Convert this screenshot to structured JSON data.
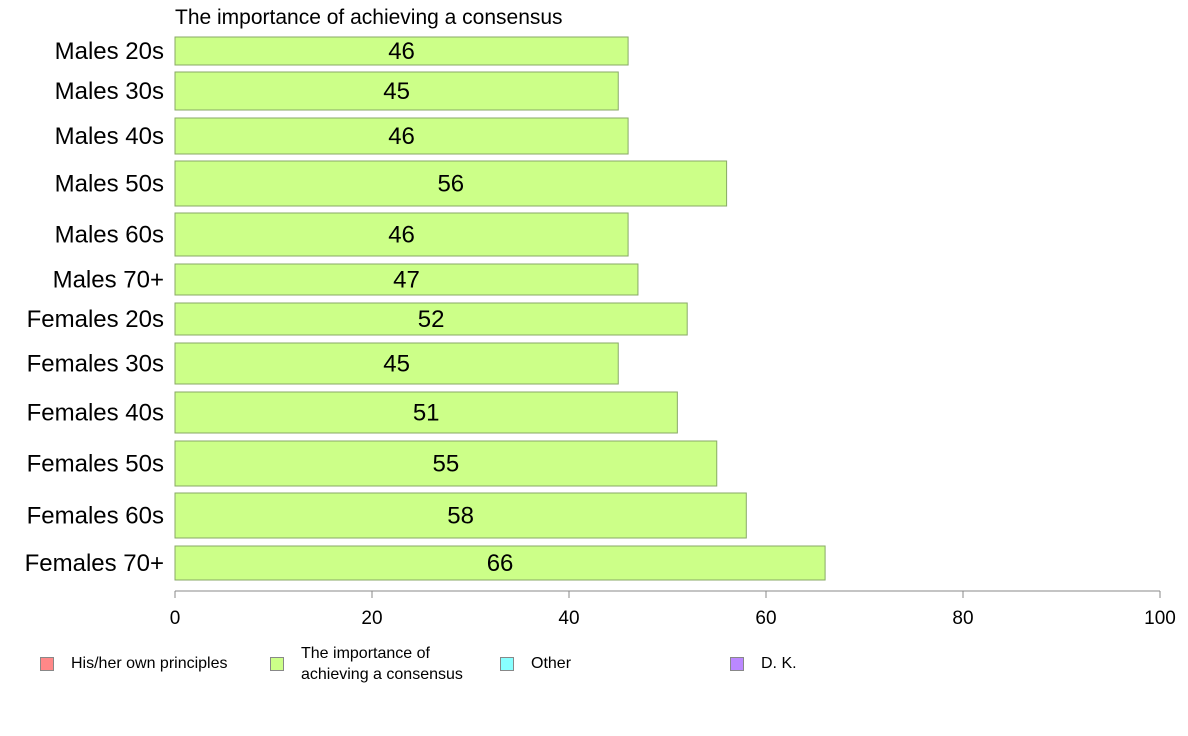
{
  "chart_data": {
    "type": "bar",
    "orientation": "horizontal",
    "title": "The importance of achieving a consensus",
    "categories": [
      "Males 20s",
      "Males 30s",
      "Males 40s",
      "Males 50s",
      "Males 60s",
      "Males 70+",
      "Females 20s",
      "Females 30s",
      "Females 40s",
      "Females 50s",
      "Females 60s",
      "Females 70+"
    ],
    "values": [
      46,
      45,
      46,
      56,
      46,
      47,
      52,
      45,
      51,
      55,
      58,
      66
    ],
    "data_labels": [
      "46",
      "45",
      "46",
      "56",
      "46",
      "47",
      "52",
      "45",
      "51",
      "55",
      "58",
      "66"
    ],
    "xlim": [
      0,
      100
    ],
    "xticks": [
      0,
      20,
      40,
      60,
      80,
      100
    ],
    "xtick_labels": [
      "0",
      "20",
      "40",
      "60",
      "80",
      "100"
    ],
    "grid": false,
    "bar_color": "#ccff88",
    "bar_border_color": "#88aa66",
    "legend_position": "bottom",
    "legend": [
      {
        "label": "His/her own principles",
        "color": "#ff8888"
      },
      {
        "label": "The importance of\nachieving a consensus",
        "color": "#ccff88"
      },
      {
        "label": "Other",
        "color": "#88ffff"
      },
      {
        "label": "D. K.",
        "color": "#bb88ff"
      }
    ]
  }
}
